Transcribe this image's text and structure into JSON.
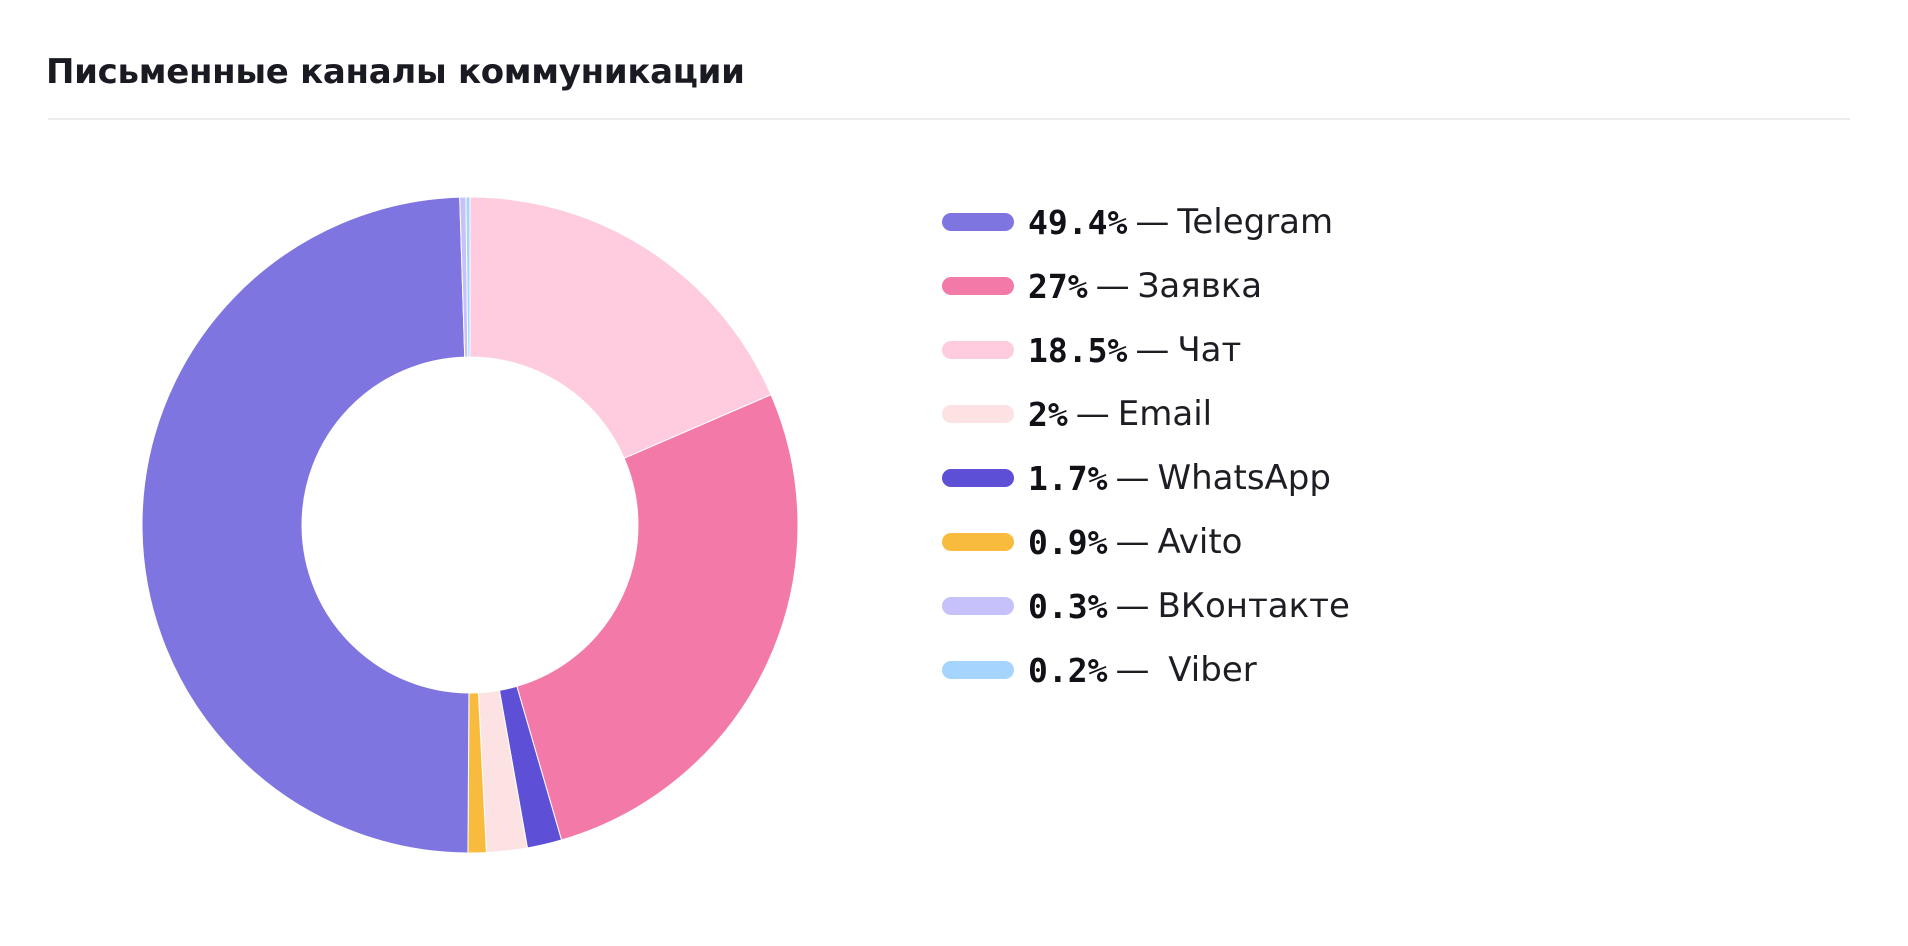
{
  "header": {
    "title": "Письменные каналы коммуникации"
  },
  "chart_data": {
    "type": "pie",
    "title": "Письменные каналы коммуникации",
    "donut": true,
    "legend_position": "right",
    "slices": [
      {
        "label": "Telegram",
        "value": 49.4,
        "pct_label": "49.4%",
        "color": "#7f75e0"
      },
      {
        "label": "Заявка",
        "value": 27,
        "pct_label": "27%",
        "color": "#f279a8"
      },
      {
        "label": "Чат",
        "value": 18.5,
        "pct_label": "18.5%",
        "color": "#fecbdf"
      },
      {
        "label": "Email",
        "value": 2,
        "pct_label": "2%",
        "color": "#fde2e3"
      },
      {
        "label": "WhatsApp",
        "value": 1.7,
        "pct_label": "1.7%",
        "color": "#5d4fd6"
      },
      {
        "label": "Avito",
        "value": 0.9,
        "pct_label": "0.9%",
        "color": "#f9bb3e"
      },
      {
        "label": "ВКонтакте",
        "value": 0.3,
        "pct_label": "0.3%",
        "color": "#c6c0fb"
      },
      {
        "label": " Viber",
        "value": 0.2,
        "pct_label": "0.2%",
        "color": "#a5d4ff"
      }
    ],
    "draw_order_clockwise_from_top": [
      "Чат",
      "Заявка",
      "WhatsApp",
      "Email",
      "Avito",
      "Telegram",
      "ВКонтакте",
      "Viber"
    ]
  },
  "legend": {
    "separator": "—"
  }
}
